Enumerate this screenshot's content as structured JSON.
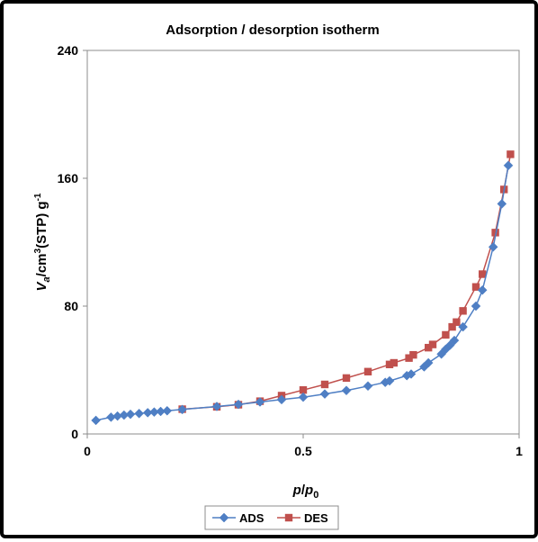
{
  "chart_data": {
    "type": "line",
    "title": "Adsorption / desorption isotherm",
    "xlabel": {
      "base": "p",
      "sep": "/",
      "sym": "p",
      "sub": "0"
    },
    "ylabel": {
      "sym": "V",
      "sub": "a",
      "mid": "/cm",
      "sup1": "3",
      "unit": "(STP) g",
      "sup2": "-1"
    },
    "xlim": [
      0,
      1
    ],
    "ylim": [
      0,
      240
    ],
    "x_ticks": [
      {
        "value": 0,
        "label": "0"
      },
      {
        "value": 0.5,
        "label": "0.5"
      },
      {
        "value": 1,
        "label": "1"
      }
    ],
    "y_ticks": [
      {
        "value": 0,
        "label": "0"
      },
      {
        "value": 80,
        "label": "80"
      },
      {
        "value": 160,
        "label": "160"
      },
      {
        "value": 240,
        "label": "240"
      }
    ],
    "grid": false,
    "legend_position": "bottom",
    "series": [
      {
        "name": "ADS",
        "color": "#4f7fc4",
        "marker": "diamond",
        "points": [
          [
            0.02,
            8.5
          ],
          [
            0.055,
            10.5
          ],
          [
            0.07,
            11.2
          ],
          [
            0.085,
            11.8
          ],
          [
            0.1,
            12.3
          ],
          [
            0.12,
            12.8
          ],
          [
            0.14,
            13.3
          ],
          [
            0.155,
            13.7
          ],
          [
            0.17,
            14.1
          ],
          [
            0.185,
            14.5
          ],
          [
            0.22,
            15.3
          ],
          [
            0.3,
            17.2
          ],
          [
            0.35,
            18.5
          ],
          [
            0.4,
            20.0
          ],
          [
            0.45,
            21.5
          ],
          [
            0.5,
            23.0
          ],
          [
            0.55,
            25.0
          ],
          [
            0.6,
            27.2
          ],
          [
            0.65,
            30.0
          ],
          [
            0.69,
            32.3
          ],
          [
            0.7,
            33.2
          ],
          [
            0.74,
            36.5
          ],
          [
            0.75,
            37.5
          ],
          [
            0.78,
            42.0
          ],
          [
            0.79,
            44.5
          ],
          [
            0.82,
            50.0
          ],
          [
            0.83,
            53.0
          ],
          [
            0.84,
            55.5
          ],
          [
            0.85,
            58.5
          ],
          [
            0.87,
            67.0
          ],
          [
            0.9,
            80.0
          ],
          [
            0.915,
            90.0
          ],
          [
            0.94,
            117.0
          ],
          [
            0.96,
            144.0
          ],
          [
            0.975,
            168.0
          ]
        ]
      },
      {
        "name": "DES",
        "color": "#c0504d",
        "marker": "square",
        "points": [
          [
            0.22,
            15.5
          ],
          [
            0.3,
            17.0
          ],
          [
            0.35,
            18.3
          ],
          [
            0.4,
            20.5
          ],
          [
            0.45,
            24.0
          ],
          [
            0.5,
            27.5
          ],
          [
            0.55,
            31.0
          ],
          [
            0.6,
            35.0
          ],
          [
            0.65,
            39.0
          ],
          [
            0.7,
            43.5
          ],
          [
            0.71,
            44.5
          ],
          [
            0.745,
            47.5
          ],
          [
            0.755,
            49.5
          ],
          [
            0.79,
            54.0
          ],
          [
            0.8,
            56.0
          ],
          [
            0.83,
            62.0
          ],
          [
            0.845,
            67.0
          ],
          [
            0.855,
            70.0
          ],
          [
            0.87,
            77.0
          ],
          [
            0.9,
            92.0
          ],
          [
            0.915,
            100.0
          ],
          [
            0.945,
            126.0
          ],
          [
            0.965,
            153.0
          ],
          [
            0.98,
            175.0
          ]
        ]
      }
    ]
  }
}
